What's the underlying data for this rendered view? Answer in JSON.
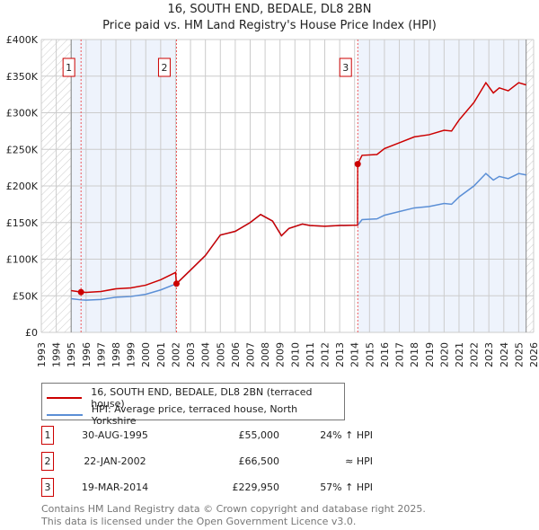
{
  "chart_data": {
    "type": "line",
    "title": "16, SOUTH END, BEDALE, DL8 2BN",
    "subtitle": "Price paid vs. HM Land Registry's House Price Index (HPI)",
    "xlim": [
      1993,
      2026
    ],
    "ylim": [
      0,
      400000
    ],
    "yticks": [
      {
        "v": 0,
        "l": "£0"
      },
      {
        "v": 50000,
        "l": "£50K"
      },
      {
        "v": 100000,
        "l": "£100K"
      },
      {
        "v": 150000,
        "l": "£150K"
      },
      {
        "v": 200000,
        "l": "£200K"
      },
      {
        "v": 250000,
        "l": "£250K"
      },
      {
        "v": 300000,
        "l": "£300K"
      },
      {
        "v": 350000,
        "l": "£350K"
      },
      {
        "v": 400000,
        "l": "£400K"
      }
    ],
    "xticks": [
      "1993",
      "1994",
      "1995",
      "1996",
      "1997",
      "1998",
      "1999",
      "2000",
      "2001",
      "2002",
      "2003",
      "2004",
      "2005",
      "2006",
      "2007",
      "2008",
      "2009",
      "2010",
      "2011",
      "2012",
      "2013",
      "2014",
      "2015",
      "2016",
      "2017",
      "2018",
      "2019",
      "2020",
      "2021",
      "2022",
      "2023",
      "2024",
      "2025",
      "2026"
    ],
    "x": [
      1995,
      1995.66,
      1996,
      1997,
      1998,
      1999,
      2000,
      2001,
      2002,
      2002.06,
      2003,
      2004,
      2005,
      2006,
      2007,
      2007.7,
      2008.5,
      2009.1,
      2009.6,
      2010.5,
      2011,
      2012,
      2013,
      2014.2,
      2014.21,
      2014.5,
      2015.5,
      2016,
      2017,
      2018,
      2019,
      2020,
      2020.5,
      2021,
      2022,
      2022.8,
      2023.3,
      2023.7,
      2024.3,
      2025,
      2025.5
    ],
    "series": [
      {
        "name": "16, SOUTH END, BEDALE, DL8 2BN (terraced house)",
        "color": "#cc0000",
        "values": [
          57000,
          55000,
          54600,
          55800,
          59500,
          60800,
          64500,
          71900,
          81800,
          66500,
          85000,
          105000,
          133000,
          138000,
          150000,
          161000,
          152000,
          132000,
          142000,
          148000,
          146000,
          145000,
          146000,
          146500,
          229950,
          241800,
          243000,
          251000,
          259000,
          267000,
          270000,
          276000,
          275000,
          290000,
          314000,
          341000,
          327000,
          334000,
          330000,
          341000,
          338000
        ]
      },
      {
        "name": "HPI: Average price, terraced house, North Yorkshire",
        "color": "#5b8fd6",
        "values": [
          46000,
          44400,
          44000,
          45000,
          48000,
          49000,
          52000,
          58000,
          66000,
          66500,
          85000,
          105000,
          133000,
          138000,
          150000,
          161000,
          152000,
          132000,
          142000,
          148000,
          146000,
          145000,
          146000,
          146500,
          146500,
          154000,
          155000,
          160000,
          165000,
          170000,
          172000,
          176000,
          175000,
          185000,
          200000,
          217000,
          208000,
          213000,
          210000,
          217000,
          215000
        ]
      }
    ],
    "sales": [
      {
        "n": "1",
        "x": 1995.66,
        "y": 55000,
        "date": "30-AUG-1995",
        "price": "£55,000",
        "hpi": "24% ↑ HPI"
      },
      {
        "n": "2",
        "x": 2002.06,
        "y": 66500,
        "date": "22-JAN-2002",
        "price": "£66,500",
        "hpi": "≈ HPI"
      },
      {
        "n": "3",
        "x": 2014.21,
        "y": 229950,
        "date": "19-MAR-2014",
        "price": "£229,950",
        "hpi": "57% ↑ HPI"
      }
    ],
    "shaded": [
      [
        1995,
        2002.06
      ],
      [
        2014.21,
        2025.5
      ]
    ],
    "hatched": [
      [
        1993,
        1995
      ],
      [
        2025.5,
        2026
      ]
    ],
    "grid": true
  },
  "footer": {
    "line1": "Contains HM Land Registry data © Crown copyright and database right 2025.",
    "line2": "This data is licensed under the Open Government Licence v3.0."
  }
}
